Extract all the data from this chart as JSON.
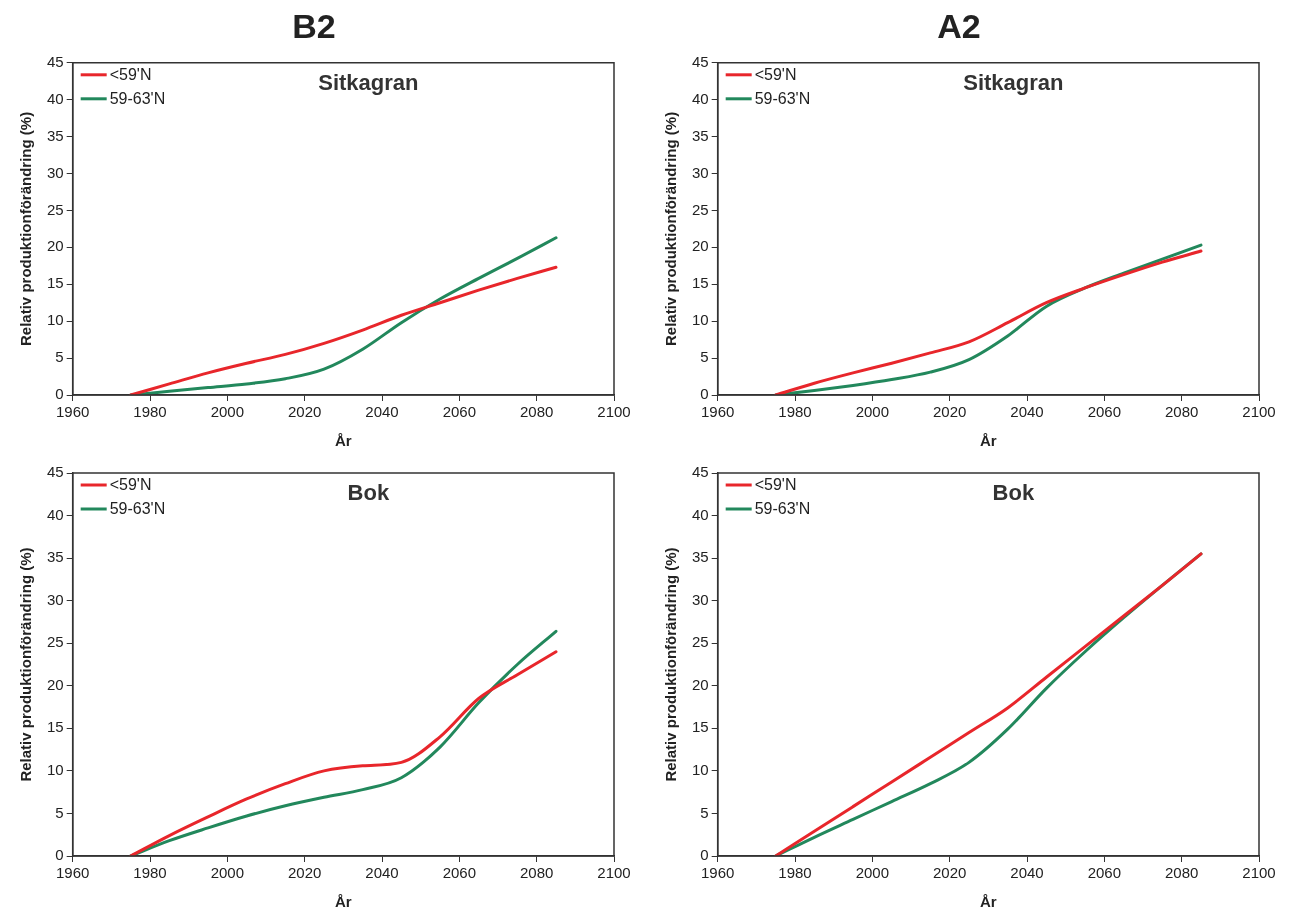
{
  "chart_data": [
    {
      "type": "line",
      "title": "B2",
      "annotations": [
        "Sitkagran"
      ],
      "xlabel": "År",
      "ylabel": "Relativ produktionförändring (%)",
      "x": [
        1975,
        1985,
        1995,
        2005,
        2015,
        2025,
        2035,
        2045,
        2055,
        2065,
        2075,
        2085
      ],
      "xlim": [
        1960,
        2100
      ],
      "xticks": [
        1960,
        1980,
        2000,
        2020,
        2040,
        2060,
        2080,
        2100
      ],
      "ylim": [
        0,
        45
      ],
      "yticks": [
        0,
        5,
        10,
        15,
        20,
        25,
        30,
        35,
        40,
        45
      ],
      "grid": false,
      "legend": "top left",
      "marker": "none",
      "line_style": "solid",
      "series": [
        {
          "name": "<59'N",
          "color": "#e8262b",
          "values": [
            0,
            1.5,
            3,
            4.3,
            5.5,
            7,
            8.8,
            10.8,
            12.5,
            14.2,
            15.8,
            17.3
          ]
        },
        {
          "name": "59-63'N",
          "color": "#22885c",
          "values": [
            0,
            0.5,
            1,
            1.5,
            2.2,
            3.5,
            6.2,
            9.8,
            13,
            15.8,
            18.5,
            21.3
          ]
        }
      ]
    },
    {
      "type": "line",
      "title": "A2",
      "annotations": [
        "Sitkagran"
      ],
      "xlabel": "År",
      "ylabel": "Relativ produktionförändring (%)",
      "x": [
        1975,
        1985,
        1995,
        2005,
        2015,
        2025,
        2035,
        2045,
        2055,
        2065,
        2075,
        2085
      ],
      "xlim": [
        1960,
        2100
      ],
      "xticks": [
        1960,
        1980,
        2000,
        2020,
        2040,
        2060,
        2080,
        2100
      ],
      "ylim": [
        0,
        45
      ],
      "yticks": [
        0,
        5,
        10,
        15,
        20,
        25,
        30,
        35,
        40,
        45
      ],
      "grid": false,
      "legend": "top left",
      "marker": "none",
      "line_style": "solid",
      "series": [
        {
          "name": "<59'N",
          "color": "#e8262b",
          "values": [
            0,
            1.6,
            3,
            4.3,
            5.7,
            7.2,
            9.8,
            12.5,
            14.5,
            16.3,
            18,
            19.5
          ]
        },
        {
          "name": "59-63'N",
          "color": "#22885c",
          "values": [
            0,
            0.6,
            1.3,
            2.1,
            3.1,
            4.8,
            8,
            12,
            14.5,
            16.5,
            18.4,
            20.3
          ]
        }
      ]
    },
    {
      "type": "line",
      "annotations": [
        "Bok"
      ],
      "xlabel": "År",
      "ylabel": "Relativ produktionförändring (%)",
      "x": [
        1975,
        1985,
        1995,
        2005,
        2015,
        2025,
        2035,
        2045,
        2055,
        2065,
        2075,
        2085
      ],
      "xlim": [
        1960,
        2100
      ],
      "xticks": [
        1960,
        1980,
        2000,
        2020,
        2040,
        2060,
        2080,
        2100
      ],
      "ylim": [
        0,
        45
      ],
      "yticks": [
        0,
        5,
        10,
        15,
        20,
        25,
        30,
        35,
        40,
        45
      ],
      "grid": false,
      "legend": "top left",
      "marker": "none",
      "line_style": "solid",
      "series": [
        {
          "name": "<59'N",
          "color": "#e8262b",
          "values": [
            0,
            2.4,
            4.6,
            6.7,
            8.5,
            10,
            10.6,
            11,
            14,
            18.5,
            21.3,
            24
          ]
        },
        {
          "name": "59-63'N",
          "color": "#22885c",
          "values": [
            0,
            1.8,
            3.3,
            4.7,
            5.9,
            6.9,
            7.8,
            9.2,
            12.8,
            18,
            22.5,
            26.4
          ]
        }
      ]
    },
    {
      "type": "line",
      "annotations": [
        "Bok"
      ],
      "xlabel": "År",
      "ylabel": "Relativ produktionförändring (%)",
      "x": [
        1975,
        1985,
        1995,
        2005,
        2015,
        2025,
        2035,
        2045,
        2055,
        2065,
        2075,
        2085
      ],
      "xlim": [
        1960,
        2100
      ],
      "xticks": [
        1960,
        1980,
        2000,
        2020,
        2040,
        2060,
        2080,
        2100
      ],
      "ylim": [
        0,
        45
      ],
      "yticks": [
        0,
        5,
        10,
        15,
        20,
        25,
        30,
        35,
        40,
        45
      ],
      "grid": false,
      "legend": "top left",
      "marker": "none",
      "line_style": "solid",
      "series": [
        {
          "name": "<59'N",
          "color": "#e8262b",
          "values": [
            0,
            2.9,
            5.8,
            8.7,
            11.6,
            14.5,
            17.4,
            21,
            24.6,
            28.2,
            31.8,
            35.5
          ]
        },
        {
          "name": "59-63'N",
          "color": "#22885c",
          "values": [
            0,
            2.2,
            4.3,
            6.4,
            8.5,
            11,
            14.9,
            19.7,
            24,
            28,
            31.8,
            35.5
          ]
        }
      ]
    }
  ]
}
